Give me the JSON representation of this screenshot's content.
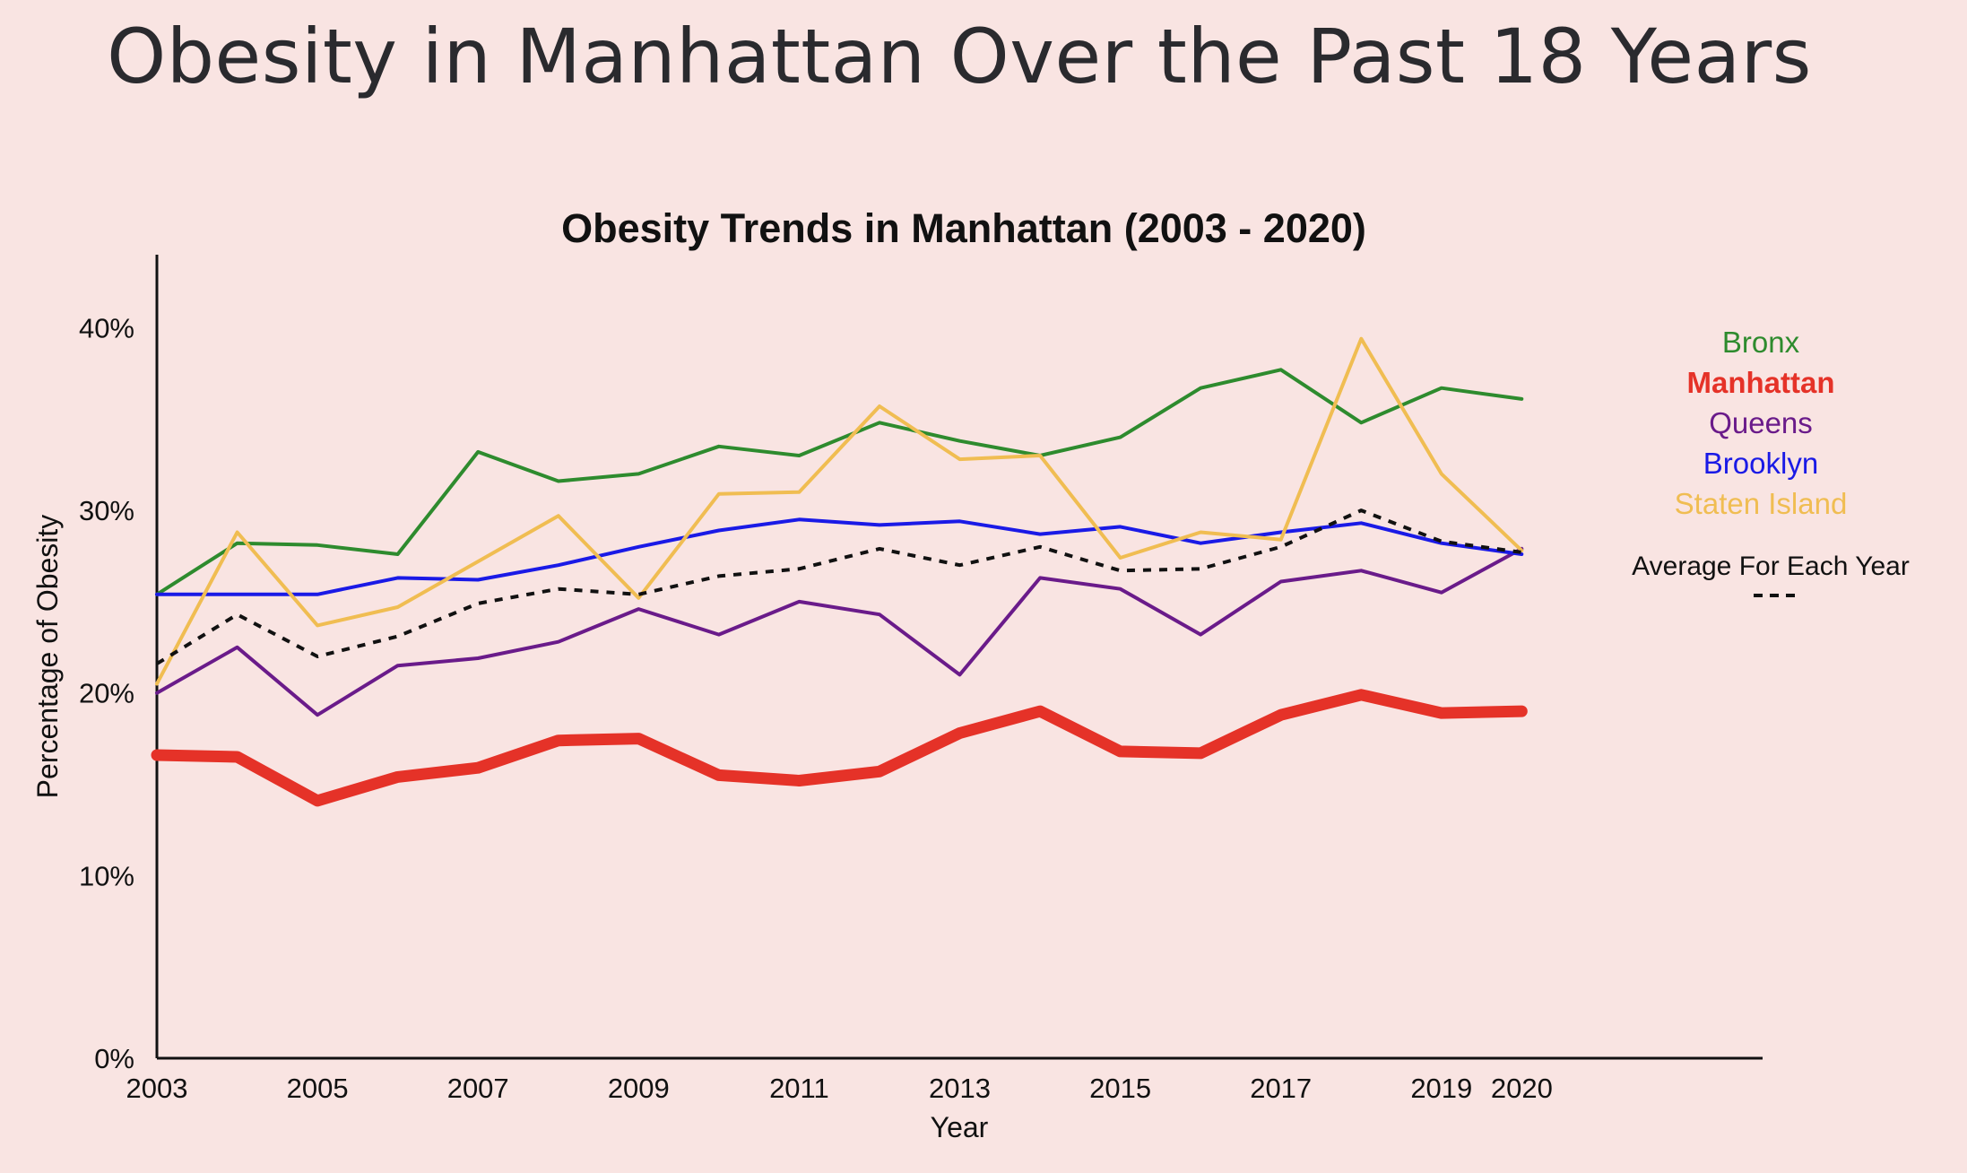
{
  "page": {
    "title": "Obesity in Manhattan Over the Past 18 Years"
  },
  "chart_data": {
    "type": "line",
    "title": "Obesity Trends in Manhattan (2003 - 2020)",
    "xlabel": "Year",
    "ylabel": "Percentage of Obesity",
    "xlim": [
      2003,
      2023
    ],
    "ylim": [
      0,
      44
    ],
    "x_ticks": [
      "2003",
      "2005",
      "2007",
      "2009",
      "2011",
      "2013",
      "2015",
      "2017",
      "2019",
      "2020"
    ],
    "y_ticks": [
      "0%",
      "10%",
      "20%",
      "30%",
      "40%"
    ],
    "x": [
      2003,
      2004,
      2005,
      2006,
      2007,
      2008,
      2009,
      2010,
      2011,
      2012,
      2013,
      2014,
      2015,
      2016,
      2017,
      2018,
      2019,
      2020
    ],
    "grid": false,
    "legend_position": "right",
    "series": [
      {
        "name": "Bronx",
        "color": "#2e8b2e",
        "line_width": 4,
        "dashed": false,
        "values": [
          25.4,
          28.2,
          28.1,
          27.6,
          33.2,
          31.6,
          32.0,
          33.5,
          33.0,
          34.8,
          33.8,
          33.0,
          34.0,
          36.7,
          37.7,
          34.8,
          36.7,
          36.1
        ]
      },
      {
        "name": "Manhattan",
        "color": "#e53228",
        "line_width": 13,
        "dashed": false,
        "values": [
          16.6,
          16.5,
          14.1,
          15.4,
          15.9,
          17.4,
          17.5,
          15.5,
          15.2,
          15.7,
          17.8,
          19.0,
          16.8,
          16.7,
          18.8,
          19.9,
          18.9,
          19.0
        ]
      },
      {
        "name": "Queens",
        "color": "#6a1b8a",
        "line_width": 4,
        "dashed": false,
        "values": [
          20.0,
          22.5,
          18.8,
          21.5,
          21.9,
          22.8,
          24.6,
          23.2,
          25.0,
          24.3,
          21.0,
          26.3,
          25.7,
          23.2,
          26.1,
          26.7,
          25.5,
          27.9
        ]
      },
      {
        "name": "Brooklyn",
        "color": "#1a1ae6",
        "line_width": 4,
        "dashed": false,
        "values": [
          25.4,
          25.4,
          25.4,
          26.3,
          26.2,
          27.0,
          28.0,
          28.9,
          29.5,
          29.2,
          29.4,
          28.7,
          29.1,
          28.2,
          28.8,
          29.3,
          28.2,
          27.6
        ]
      },
      {
        "name": "Staten Island",
        "color": "#f0bd52",
        "line_width": 4,
        "dashed": false,
        "values": [
          20.5,
          28.8,
          23.7,
          24.7,
          27.2,
          29.7,
          25.2,
          30.9,
          31.0,
          35.7,
          32.8,
          33.0,
          27.4,
          28.8,
          28.4,
          39.4,
          32.0,
          27.8
        ]
      },
      {
        "name": "Average For Each Year",
        "color": "#111111",
        "line_width": 4,
        "dashed": true,
        "values": [
          21.6,
          24.3,
          22.0,
          23.1,
          24.9,
          25.7,
          25.4,
          26.4,
          26.8,
          27.9,
          27.0,
          28.0,
          26.7,
          26.8,
          28.0,
          30.0,
          28.3,
          27.7
        ]
      }
    ]
  }
}
